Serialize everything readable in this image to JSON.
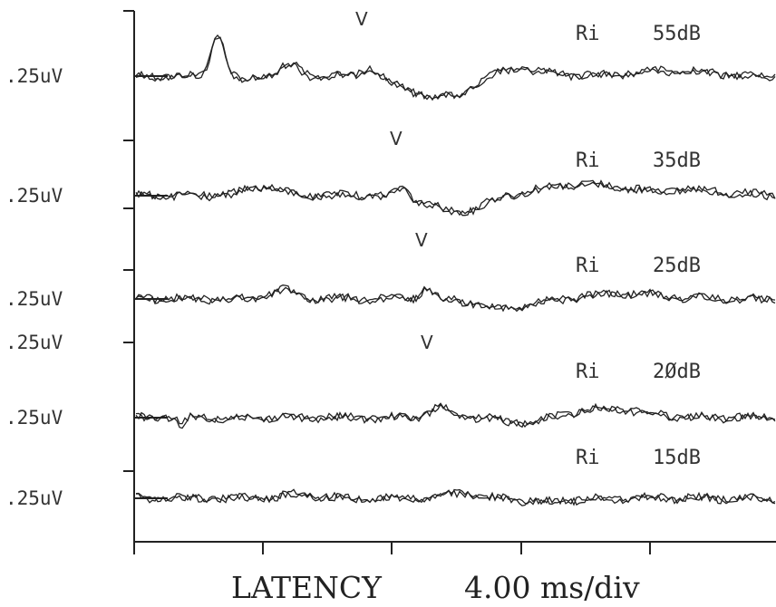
{
  "chart_data": {
    "type": "line",
    "title": "",
    "xlabel": "LATENCY",
    "scale_label": "4.00 ms/div",
    "x_divisions": 5,
    "grid": false,
    "traces": [
      {
        "label": "Ri",
        "level": "55dB",
        "amplitude_scale": ".25uV",
        "wave_v_marker": "V"
      },
      {
        "label": "Ri",
        "level": "35dB",
        "amplitude_scale": ".25uV",
        "wave_v_marker": "V"
      },
      {
        "label": "Ri",
        "level": "25dB",
        "amplitude_scale": ".25uV",
        "wave_v_marker": "V"
      },
      {
        "label": "Ri",
        "level": "2ØdB",
        "amplitude_scale": ".25uV",
        "wave_v_marker": "V"
      },
      {
        "label": "Ri",
        "level": "15dB",
        "amplitude_scale": ".25uV"
      }
    ],
    "extra_amplitude_labels": [
      ".25uV"
    ]
  }
}
